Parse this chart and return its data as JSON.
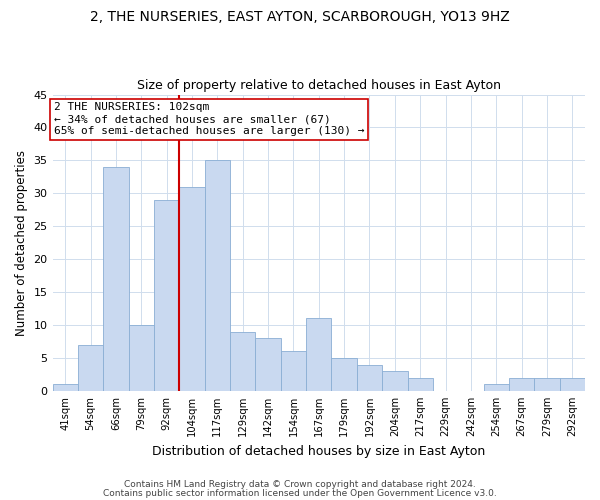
{
  "title": "2, THE NURSERIES, EAST AYTON, SCARBOROUGH, YO13 9HZ",
  "subtitle": "Size of property relative to detached houses in East Ayton",
  "xlabel": "Distribution of detached houses by size in East Ayton",
  "ylabel": "Number of detached properties",
  "bar_labels": [
    "41sqm",
    "54sqm",
    "66sqm",
    "79sqm",
    "92sqm",
    "104sqm",
    "117sqm",
    "129sqm",
    "142sqm",
    "154sqm",
    "167sqm",
    "179sqm",
    "192sqm",
    "204sqm",
    "217sqm",
    "229sqm",
    "242sqm",
    "254sqm",
    "267sqm",
    "279sqm",
    "292sqm"
  ],
  "bar_values": [
    1,
    7,
    34,
    10,
    29,
    31,
    35,
    9,
    8,
    6,
    11,
    5,
    4,
    3,
    2,
    0,
    0,
    1,
    2,
    2,
    2
  ],
  "bar_color": "#c9d9f0",
  "bar_edge_color": "#8aaed4",
  "vline_color": "#cc0000",
  "annotation_text": "2 THE NURSERIES: 102sqm\n← 34% of detached houses are smaller (67)\n65% of semi-detached houses are larger (130) →",
  "annotation_box_edgecolor": "#cc0000",
  "annotation_box_facecolor": "#ffffff",
  "ylim": [
    0,
    45
  ],
  "yticks": [
    0,
    5,
    10,
    15,
    20,
    25,
    30,
    35,
    40,
    45
  ],
  "footer_line1": "Contains HM Land Registry data © Crown copyright and database right 2024.",
  "footer_line2": "Contains public sector information licensed under the Open Government Licence v3.0.",
  "background_color": "#ffffff",
  "grid_color": "#d0dded",
  "title_fontsize": 10,
  "subtitle_fontsize": 9
}
